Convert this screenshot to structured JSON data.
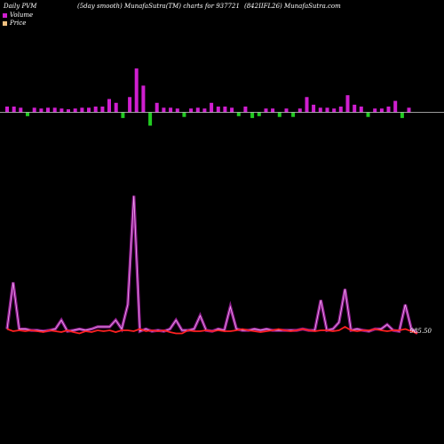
{
  "header": {
    "left": "Daily PVM",
    "middle": "(5day smooth) MunafaSutra(TM) charts for 937721",
    "right": "(842IIFL26) MunafaSutra.com"
  },
  "legend": [
    {
      "label": "Volume",
      "color": "#d01fd0"
    },
    {
      "label": "Price",
      "color": "#f0c080"
    }
  ],
  "chart_data": [
    {
      "type": "bar",
      "title": "Volume",
      "up_color": "#d01fd0",
      "down_color": "#22cc22",
      "values": [
        1.5,
        1.5,
        1.2,
        1.0,
        1.2,
        1.0,
        1.2,
        1.2,
        1.0,
        0.8,
        1.0,
        1.2,
        1.2,
        1.5,
        1.5,
        3.5,
        2.5,
        1.5,
        4.0,
        11.5,
        7.0,
        3.5,
        2.5,
        1.2,
        1.2,
        1.0,
        1.2,
        1.0,
        1.2,
        1.0,
        2.5,
        1.5,
        1.5,
        1.2,
        1.0,
        1.5,
        1.5,
        1.0,
        1.0,
        1.0,
        1.2,
        1.0,
        1.2,
        1.0,
        4.0,
        2.0,
        1.2,
        1.2,
        1.0,
        1.5,
        4.5,
        2.0,
        1.5,
        1.2,
        1.0,
        1.0,
        1.5,
        3.0,
        1.5,
        1.2
      ],
      "direction": [
        1,
        1,
        1,
        0,
        1,
        1,
        1,
        1,
        1,
        1,
        1,
        1,
        1,
        1,
        1,
        1,
        1,
        0,
        1,
        1,
        1,
        0,
        1,
        1,
        1,
        1,
        0,
        1,
        1,
        1,
        1,
        1,
        1,
        1,
        0,
        1,
        0,
        0,
        1,
        1,
        0,
        1,
        0,
        1,
        1,
        1,
        1,
        1,
        1,
        1,
        1,
        1,
        1,
        0,
        1,
        1,
        1,
        1,
        0,
        1
      ]
    },
    {
      "type": "line",
      "series": [
        {
          "name": "Volume",
          "color": "#d01fd0",
          "values": [
            1.5,
            12.0,
            1.5,
            1.5,
            1.2,
            1.2,
            1.0,
            1.2,
            1.5,
            3.5,
            1.0,
            1.2,
            1.5,
            1.2,
            1.5,
            2.0,
            2.0,
            2.0,
            3.5,
            1.5,
            7.0,
            31.5,
            1.0,
            1.5,
            1.0,
            1.2,
            1.0,
            1.5,
            3.5,
            1.2,
            1.2,
            1.5,
            4.5,
            1.2,
            1.0,
            1.5,
            1.2,
            6.5,
            1.5,
            1.2,
            1.2,
            1.5,
            1.2,
            1.5,
            1.2,
            1.2,
            1.2,
            1.2,
            1.2,
            1.5,
            1.2,
            1.2,
            8.0,
            1.2,
            1.5,
            3.0,
            10.5,
            1.2,
            1.5,
            1.2,
            1.0,
            1.5,
            1.5,
            2.5,
            1.2,
            1.0,
            7.0,
            1.5,
            0.5
          ]
        },
        {
          "name": "Price",
          "color": "#ff2020",
          "values": [
            1.5,
            1.0,
            1.2,
            1.0,
            1.2,
            1.0,
            0.8,
            1.2,
            1.0,
            0.8,
            1.2,
            0.8,
            0.5,
            1.0,
            0.8,
            1.2,
            1.0,
            1.2,
            0.8,
            1.2,
            1.2,
            1.0,
            1.5,
            1.0,
            1.2,
            1.0,
            1.2,
            0.8,
            0.5,
            0.5,
            1.2,
            1.0,
            1.0,
            1.2,
            1.0,
            1.2,
            1.0,
            1.0,
            1.2,
            1.5,
            1.2,
            1.0,
            0.8,
            1.0,
            1.2,
            1.5,
            1.2,
            1.0,
            1.2,
            1.5,
            1.2,
            1.0,
            1.2,
            1.2,
            1.0,
            1.2,
            2.0,
            1.2,
            1.0,
            1.2,
            1.2,
            1.5,
            1.2,
            1.0,
            1.2,
            1.2,
            1.5,
            1.0,
            0.5
          ]
        }
      ],
      "price_label": "985.50"
    }
  ]
}
